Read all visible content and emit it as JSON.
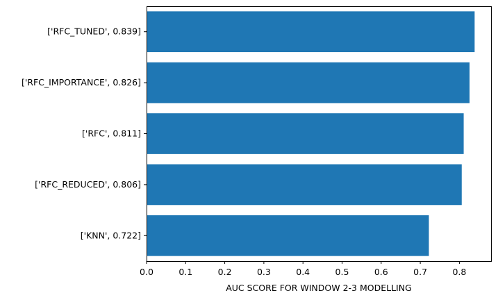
{
  "chart_data": {
    "type": "bar",
    "orientation": "horizontal",
    "categories": [
      "['RFC_TUNED', 0.839]",
      "['RFC_IMPORTANCE', 0.826]",
      "['RFC', 0.811]",
      "['RFC_REDUCED', 0.806]",
      "['KNN', 0.722]"
    ],
    "values": [
      0.839,
      0.826,
      0.811,
      0.806,
      0.722
    ],
    "xlabel": "AUC SCORE FOR WINDOW 2-3 MODELLING",
    "ylabel": "",
    "xlim": [
      0,
      0.881
    ],
    "xticks": [
      "0.0",
      "0.1",
      "0.2",
      "0.3",
      "0.4",
      "0.5",
      "0.6",
      "0.7",
      "0.8"
    ],
    "bar_color": "#1f77b4",
    "grid": false,
    "legend": "none"
  }
}
